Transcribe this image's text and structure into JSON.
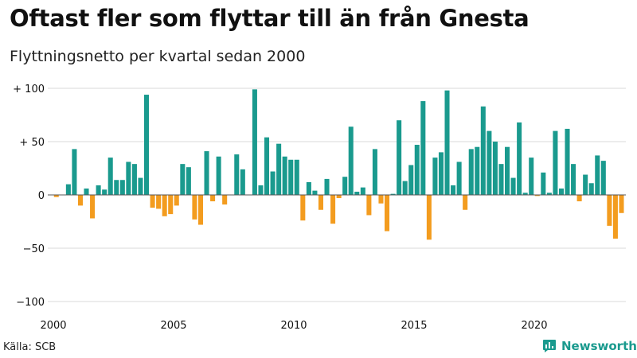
{
  "header": {
    "title": "Oftast fler som flyttar till än från Gnesta",
    "subtitle": "Flyttningsnetto per kvartal sedan 2000"
  },
  "footer": {
    "source": "Källa: SCB",
    "brand": "Newsworthy"
  },
  "colors": {
    "positive": "#1a9a8e",
    "negative": "#f39c1f",
    "grid": "#d9d9d9",
    "zero_line": "#555555",
    "text": "#111111"
  },
  "icons": {
    "brand_logo": "bar-chart-icon"
  },
  "chart_data": {
    "type": "bar",
    "title": "Oftast fler som flyttar till än från Gnesta",
    "subtitle": "Flyttningsnetto per kvartal sedan 2000",
    "xlabel": "",
    "ylabel": "",
    "ylim": [
      -100,
      100
    ],
    "xlim": [
      2000,
      2024
    ],
    "y_ticks": [
      100,
      50,
      0,
      -50,
      -100
    ],
    "y_tick_labels": [
      "+ 100",
      "+  50",
      "0",
      "−50",
      "−100"
    ],
    "x_ticks": [
      2000,
      2005,
      2010,
      2015,
      2020
    ],
    "x_tick_labels": [
      "2000",
      "2005",
      "2010",
      "2015",
      "2020"
    ],
    "grid": "horizontal",
    "start_year": 2000,
    "values": [
      -2,
      0,
      10,
      43,
      -10,
      6,
      -22,
      9,
      5,
      35,
      14,
      14,
      31,
      29,
      16,
      94,
      -12,
      -13,
      -20,
      -18,
      -10,
      29,
      26,
      -23,
      -28,
      41,
      -6,
      36,
      -9,
      0,
      38,
      24,
      0,
      99,
      9,
      54,
      22,
      48,
      36,
      33,
      33,
      -24,
      12,
      4,
      -14,
      15,
      -27,
      -3,
      17,
      64,
      3,
      7,
      -19,
      43,
      -8,
      -34,
      1,
      70,
      13,
      28,
      47,
      88,
      -42,
      35,
      40,
      98,
      9,
      31,
      -14,
      43,
      45,
      83,
      60,
      50,
      29,
      45,
      16,
      68,
      2,
      35,
      -1,
      21,
      2,
      60,
      6,
      62,
      29,
      -6,
      19,
      11,
      37,
      32,
      -29,
      -41,
      -17
    ]
  }
}
